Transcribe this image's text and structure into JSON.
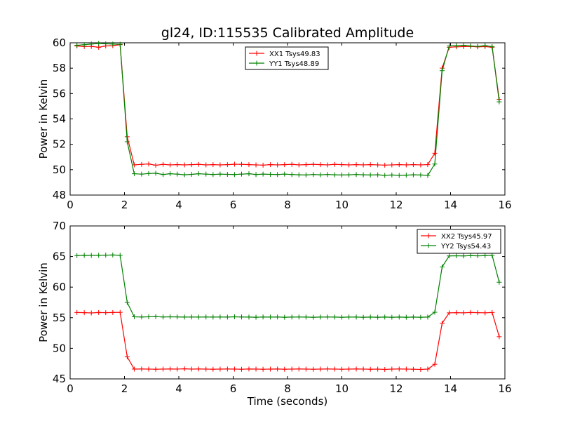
{
  "figure": {
    "title": "gl24, ID:115535 Calibrated Amplitude",
    "xlabel": "Time (seconds)"
  },
  "chart_data": [
    {
      "type": "line",
      "ylabel": "Power in Kelvin",
      "xlim": [
        0,
        16
      ],
      "ylim": [
        48,
        60
      ],
      "xticks": [
        "0",
        "2",
        "4",
        "6",
        "8",
        "10",
        "12",
        "14",
        "16"
      ],
      "yticks": [
        "48",
        "50",
        "52",
        "54",
        "56",
        "58",
        "60"
      ],
      "legend_position": "upper-center",
      "grid": false,
      "x": [
        0.25,
        0.52,
        0.78,
        1.05,
        1.31,
        1.57,
        1.84,
        2.1,
        2.36,
        2.63,
        2.89,
        3.15,
        3.42,
        3.68,
        3.94,
        4.21,
        4.47,
        4.73,
        5.0,
        5.26,
        5.52,
        5.79,
        6.05,
        6.31,
        6.58,
        6.84,
        7.1,
        7.37,
        7.63,
        7.89,
        8.16,
        8.42,
        8.68,
        8.95,
        9.21,
        9.47,
        9.74,
        10.0,
        10.26,
        10.53,
        10.79,
        11.05,
        11.32,
        11.58,
        11.84,
        12.11,
        12.37,
        12.63,
        12.9,
        13.16,
        13.42,
        13.69,
        13.95,
        14.21,
        14.48,
        14.74,
        15.0,
        15.27,
        15.53,
        15.79
      ],
      "series": [
        {
          "name": "XX1 Tsys49.83",
          "color": "#ff0000",
          "values": [
            59.75,
            59.7,
            59.72,
            59.65,
            59.75,
            59.78,
            59.85,
            52.6,
            50.38,
            50.42,
            50.45,
            50.35,
            50.42,
            50.38,
            50.4,
            50.38,
            50.4,
            50.42,
            50.38,
            50.4,
            50.38,
            50.4,
            50.43,
            50.42,
            50.4,
            50.38,
            50.36,
            50.4,
            50.38,
            50.4,
            50.42,
            50.38,
            50.4,
            50.42,
            50.4,
            50.38,
            50.42,
            50.4,
            50.38,
            50.4,
            50.38,
            50.4,
            50.38,
            50.36,
            50.38,
            50.4,
            50.38,
            50.4,
            50.38,
            50.4,
            51.3,
            58.0,
            59.65,
            59.68,
            59.7,
            59.72,
            59.68,
            59.7,
            59.65,
            55.55
          ]
        },
        {
          "name": "YY1 Tsys48.89",
          "color": "#008000",
          "values": [
            59.8,
            59.85,
            59.9,
            59.95,
            59.92,
            59.9,
            59.88,
            52.2,
            49.68,
            49.65,
            49.7,
            49.72,
            49.62,
            49.68,
            49.65,
            49.6,
            49.63,
            49.68,
            49.65,
            49.62,
            49.65,
            49.63,
            49.62,
            49.65,
            49.68,
            49.62,
            49.65,
            49.63,
            49.62,
            49.65,
            49.62,
            49.6,
            49.58,
            49.62,
            49.6,
            49.62,
            49.6,
            49.58,
            49.6,
            49.62,
            49.6,
            49.58,
            49.6,
            49.55,
            49.58,
            49.55,
            49.57,
            49.6,
            49.58,
            49.55,
            50.45,
            57.8,
            59.75,
            59.78,
            59.8,
            59.75,
            59.72,
            59.78,
            59.7,
            55.35
          ]
        }
      ]
    },
    {
      "type": "line",
      "ylabel": "Power in Kelvin",
      "xlim": [
        0,
        16
      ],
      "ylim": [
        45,
        70
      ],
      "xticks": [
        "0",
        "2",
        "4",
        "6",
        "8",
        "10",
        "12",
        "14",
        "16"
      ],
      "yticks": [
        "45",
        "50",
        "55",
        "60",
        "65",
        "70"
      ],
      "legend_position": "upper-right",
      "grid": false,
      "x": [
        0.25,
        0.52,
        0.78,
        1.05,
        1.31,
        1.57,
        1.84,
        2.1,
        2.36,
        2.63,
        2.89,
        3.15,
        3.42,
        3.68,
        3.94,
        4.21,
        4.47,
        4.73,
        5.0,
        5.26,
        5.52,
        5.79,
        6.05,
        6.31,
        6.58,
        6.84,
        7.1,
        7.37,
        7.63,
        7.89,
        8.16,
        8.42,
        8.68,
        8.95,
        9.21,
        9.47,
        9.74,
        10.0,
        10.26,
        10.53,
        10.79,
        11.05,
        11.32,
        11.58,
        11.84,
        12.11,
        12.37,
        12.63,
        12.9,
        13.16,
        13.42,
        13.69,
        13.95,
        14.21,
        14.48,
        14.74,
        15.0,
        15.27,
        15.53,
        15.79
      ],
      "series": [
        {
          "name": "XX2 Tsys45.97",
          "color": "#ff0000",
          "values": [
            55.85,
            55.82,
            55.78,
            55.85,
            55.82,
            55.85,
            55.88,
            48.6,
            46.6,
            46.62,
            46.6,
            46.58,
            46.6,
            46.62,
            46.6,
            46.65,
            46.6,
            46.62,
            46.6,
            46.58,
            46.6,
            46.62,
            46.6,
            46.58,
            46.62,
            46.6,
            46.58,
            46.6,
            46.62,
            46.58,
            46.6,
            46.62,
            46.6,
            46.58,
            46.6,
            46.62,
            46.6,
            46.58,
            46.6,
            46.62,
            46.6,
            46.58,
            46.6,
            46.55,
            46.6,
            46.62,
            46.6,
            46.58,
            46.55,
            46.6,
            47.4,
            54.1,
            55.8,
            55.82,
            55.8,
            55.85,
            55.82,
            55.8,
            55.85,
            51.9
          ]
        },
        {
          "name": "YY2 Tsys54.43",
          "color": "#008000",
          "values": [
            65.15,
            65.2,
            65.18,
            65.2,
            65.22,
            65.25,
            65.2,
            57.5,
            55.15,
            55.12,
            55.15,
            55.18,
            55.12,
            55.15,
            55.13,
            55.1,
            55.12,
            55.1,
            55.12,
            55.1,
            55.12,
            55.1,
            55.15,
            55.12,
            55.1,
            55.08,
            55.12,
            55.1,
            55.12,
            55.08,
            55.1,
            55.12,
            55.1,
            55.08,
            55.1,
            55.12,
            55.1,
            55.08,
            55.1,
            55.1,
            55.08,
            55.1,
            55.08,
            55.1,
            55.08,
            55.1,
            55.08,
            55.1,
            55.08,
            55.1,
            55.9,
            63.3,
            65.1,
            65.12,
            65.1,
            65.15,
            65.12,
            65.15,
            65.2,
            60.8
          ]
        }
      ]
    }
  ]
}
